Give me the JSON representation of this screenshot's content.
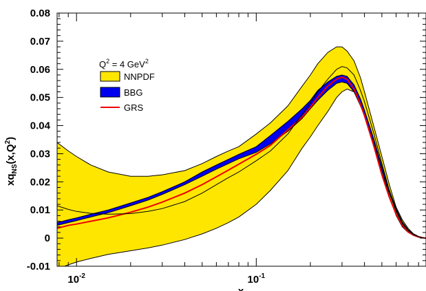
{
  "chart_data": {
    "type": "area",
    "xlabel": "x",
    "ylabel_main": "xq",
    "ylabel_sub": "NS",
    "ylabel_tail": "(x,Q",
    "ylabel_sup": "2",
    "ylabel_close": ")",
    "x_scale": "log",
    "xlim": [
      0.0078,
      0.88
    ],
    "ylim": [
      -0.01,
      0.08
    ],
    "grid": false,
    "legend_placement": "top-left",
    "x_ticks": [
      {
        "value": 0.01,
        "base": "10",
        "exp": "-2"
      },
      {
        "value": 0.1,
        "base": "10",
        "exp": "-1"
      }
    ],
    "y_ticks": [
      {
        "value": -0.01,
        "label": "-0.01"
      },
      {
        "value": 0.0,
        "label": "0"
      },
      {
        "value": 0.01,
        "label": "0.01"
      },
      {
        "value": 0.02,
        "label": "0.02"
      },
      {
        "value": 0.03,
        "label": "0.03"
      },
      {
        "value": 0.04,
        "label": "0.04"
      },
      {
        "value": 0.05,
        "label": "0.05"
      },
      {
        "value": 0.06,
        "label": "0.06"
      },
      {
        "value": 0.07,
        "label": "0.07"
      },
      {
        "value": 0.08,
        "label": "0.08"
      }
    ],
    "legend": {
      "header_main": "Q",
      "header_sup1": "2",
      "header_mid": " = 4 GeV",
      "header_sup2": "2",
      "entries": [
        {
          "label": "NNPDF",
          "kind": "band",
          "color": "#ffe600"
        },
        {
          "label": "BBG",
          "kind": "band",
          "color": "#0000ee"
        },
        {
          "label": "GRS",
          "kind": "line",
          "color": "#ee0000"
        }
      ]
    },
    "x": [
      0.0078,
      0.009,
      0.01,
      0.012,
      0.015,
      0.02,
      0.025,
      0.03,
      0.04,
      0.05,
      0.06,
      0.07,
      0.08,
      0.1,
      0.12,
      0.15,
      0.18,
      0.2,
      0.22,
      0.25,
      0.28,
      0.3,
      0.32,
      0.35,
      0.38,
      0.4,
      0.45,
      0.5,
      0.55,
      0.6,
      0.65,
      0.7,
      0.75,
      0.8,
      0.85,
      0.88
    ],
    "series": [
      {
        "name": "NNPDF",
        "kind": "band",
        "color": "#ffe600",
        "lower": [
          -0.011,
          -0.0095,
          -0.0085,
          -0.0072,
          -0.0058,
          -0.0045,
          -0.0035,
          -0.0025,
          -0.0005,
          0.0015,
          0.0035,
          0.0055,
          0.0075,
          0.012,
          0.017,
          0.024,
          0.032,
          0.036,
          0.04,
          0.045,
          0.05,
          0.052,
          0.053,
          0.052,
          0.048,
          0.045,
          0.035,
          0.024,
          0.015,
          0.008,
          0.004,
          0.002,
          0.001,
          0.0003,
          0.0001,
          0.0
        ],
        "upper": [
          0.034,
          0.031,
          0.029,
          0.026,
          0.0235,
          0.022,
          0.022,
          0.0225,
          0.024,
          0.0265,
          0.029,
          0.031,
          0.0325,
          0.037,
          0.041,
          0.047,
          0.054,
          0.058,
          0.062,
          0.066,
          0.068,
          0.068,
          0.0665,
          0.063,
          0.057,
          0.052,
          0.04,
          0.029,
          0.019,
          0.011,
          0.0065,
          0.0035,
          0.0015,
          0.0006,
          0.0002,
          0.0
        ]
      },
      {
        "name": "BBG",
        "kind": "band",
        "color": "#0000ee",
        "lower": [
          0.0045,
          0.0055,
          0.0062,
          0.0075,
          0.009,
          0.0115,
          0.0135,
          0.0155,
          0.019,
          0.022,
          0.0245,
          0.0265,
          0.0282,
          0.0305,
          0.0335,
          0.038,
          0.0425,
          0.046,
          0.049,
          0.0525,
          0.055,
          0.0555,
          0.055,
          0.052,
          0.047,
          0.0435,
          0.034,
          0.024,
          0.016,
          0.0095,
          0.005,
          0.0025,
          0.0012,
          0.0005,
          0.0001,
          0.0
        ],
        "upper": [
          0.0055,
          0.0065,
          0.0072,
          0.0085,
          0.01,
          0.0125,
          0.0145,
          0.0165,
          0.02,
          0.0235,
          0.026,
          0.028,
          0.0298,
          0.0325,
          0.0365,
          0.0415,
          0.046,
          0.049,
          0.0525,
          0.0555,
          0.0575,
          0.058,
          0.0575,
          0.0545,
          0.0495,
          0.0455,
          0.0355,
          0.0255,
          0.017,
          0.0105,
          0.0058,
          0.003,
          0.0015,
          0.0006,
          0.0002,
          0.0
        ]
      },
      {
        "name": "GRS",
        "kind": "line",
        "color": "#ee0000",
        "values": [
          0.0035,
          0.0045,
          0.005,
          0.006,
          0.0072,
          0.0092,
          0.011,
          0.0128,
          0.016,
          0.019,
          0.0218,
          0.0242,
          0.0263,
          0.0298,
          0.033,
          0.0385,
          0.043,
          0.0465,
          0.05,
          0.054,
          0.0565,
          0.0572,
          0.0565,
          0.053,
          0.0475,
          0.0435,
          0.033,
          0.0225,
          0.0145,
          0.0085,
          0.0045,
          0.0022,
          0.001,
          0.0004,
          0.0001,
          0.0
        ]
      },
      {
        "name": "NNPDF",
        "kind": "line",
        "color": "#000000",
        "values": [
          0.0115,
          0.0102,
          0.0095,
          0.0088,
          0.0085,
          0.0087,
          0.0095,
          0.0105,
          0.013,
          0.016,
          0.019,
          0.0215,
          0.0235,
          0.0275,
          0.031,
          0.037,
          0.044,
          0.048,
          0.052,
          0.0565,
          0.06,
          0.061,
          0.0605,
          0.058,
          0.0525,
          0.0485,
          0.0375,
          0.0265,
          0.017,
          0.0098,
          0.0052,
          0.0027,
          0.0012,
          0.0005,
          0.0001,
          0.0
        ]
      }
    ]
  }
}
